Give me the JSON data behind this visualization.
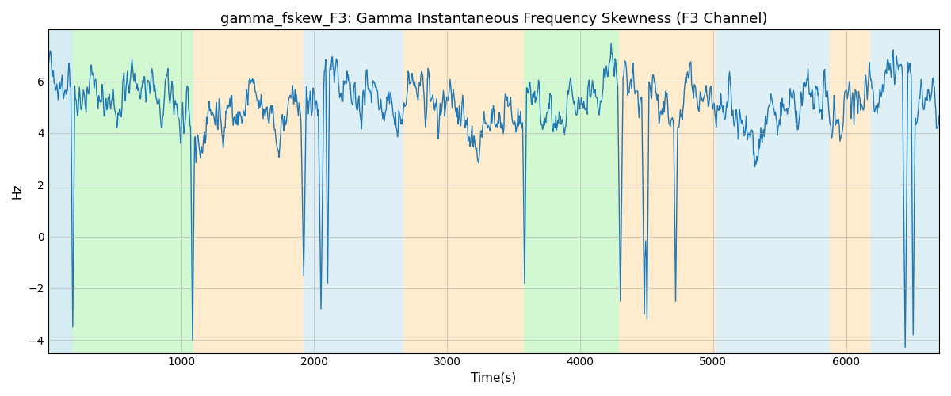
{
  "title": "gamma_fskew_F3: Gamma Instantaneous Frequency Skewness (F3 Channel)",
  "xlabel": "Time(s)",
  "ylabel": "Hz",
  "xlim": [
    0,
    6700
  ],
  "ylim": [
    -4.5,
    8.0
  ],
  "yticks": [
    -4,
    -2,
    0,
    2,
    4,
    6
  ],
  "xticks": [
    1000,
    2000,
    3000,
    4000,
    5000,
    6000
  ],
  "line_color": "#1f77b4",
  "line_width": 1.0,
  "background_color": "#ffffff",
  "grid_color": "#aaaaaa",
  "grid_alpha": 0.5,
  "regions": [
    {
      "xmin": 0,
      "xmax": 185,
      "color": "#add8e6",
      "alpha": 0.5
    },
    {
      "xmin": 185,
      "xmax": 1090,
      "color": "#90ee90",
      "alpha": 0.4
    },
    {
      "xmin": 1090,
      "xmax": 1920,
      "color": "#ffdaa0",
      "alpha": 0.5
    },
    {
      "xmin": 1920,
      "xmax": 2670,
      "color": "#add8e6",
      "alpha": 0.4
    },
    {
      "xmin": 2670,
      "xmax": 3580,
      "color": "#ffdaa0",
      "alpha": 0.5
    },
    {
      "xmin": 3580,
      "xmax": 4290,
      "color": "#90ee90",
      "alpha": 0.4
    },
    {
      "xmin": 4290,
      "xmax": 5020,
      "color": "#ffdaa0",
      "alpha": 0.5
    },
    {
      "xmin": 5020,
      "xmax": 5880,
      "color": "#add8e6",
      "alpha": 0.4
    },
    {
      "xmin": 5880,
      "xmax": 6180,
      "color": "#ffdaa0",
      "alpha": 0.5
    },
    {
      "xmin": 6180,
      "xmax": 6700,
      "color": "#add8e6",
      "alpha": 0.4
    }
  ],
  "seed": 42,
  "n_points": 1340,
  "base_value": 5.1,
  "title_fontsize": 13,
  "label_fontsize": 11
}
